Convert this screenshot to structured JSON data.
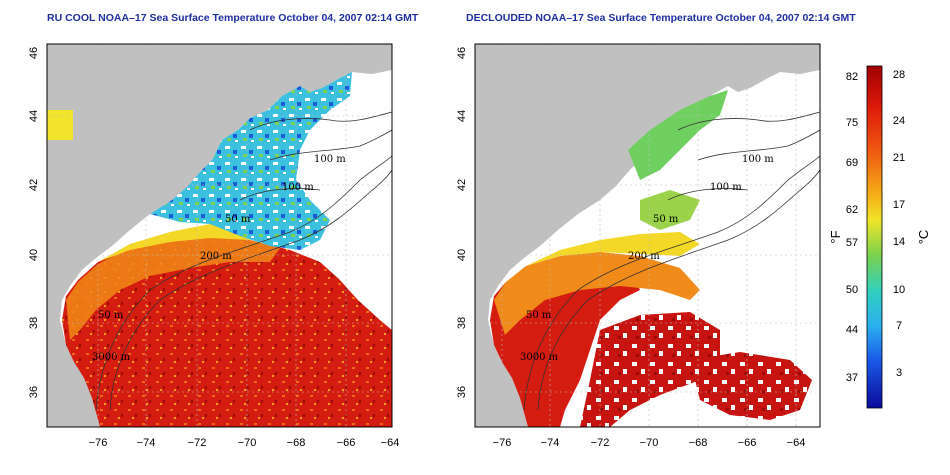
{
  "panels": [
    {
      "title": "RU COOL NOAA–17 Sea Surface Temperature October 04, 2007 02:14 GMT",
      "x_ticks": [
        "−76",
        "−74",
        "−72",
        "−70",
        "−68",
        "−66",
        "−64"
      ],
      "y_ticks": [
        "46",
        "44",
        "42",
        "40",
        "38",
        "36"
      ],
      "contour_labels": [
        "100 m",
        "100 m",
        "50 m",
        "200 m",
        "50 m",
        "3000 m"
      ]
    },
    {
      "title": "DECLOUDED NOAA–17 Sea Surface Temperature October 04, 2007 02:14 GMT",
      "x_ticks": [
        "−76",
        "−74",
        "−72",
        "−70",
        "−68",
        "−66",
        "−64"
      ],
      "y_ticks": [
        "46",
        "44",
        "42",
        "40",
        "38",
        "36"
      ],
      "contour_labels": [
        "100 m",
        "100 m",
        "50 m",
        "200 m",
        "50 m",
        "3000 m"
      ]
    }
  ],
  "colorbar": {
    "fahrenheit_ticks": [
      "82",
      "75",
      "69",
      "62",
      "57",
      "50",
      "44",
      "37"
    ],
    "celsius_ticks": [
      "28",
      "24",
      "21",
      "17",
      "14",
      "10",
      "7",
      "3"
    ],
    "unit_f": "°F",
    "unit_c": "°C"
  },
  "colors": {
    "land": "#c0c0c0",
    "cloud": "#ffffff",
    "title": "#1f2f9f",
    "warm": "#c81010",
    "hot": "#e83a10",
    "orange": "#f08a18",
    "yellow": "#f3e030",
    "green": "#58c870",
    "cyan": "#30c8e8",
    "blue": "#1050d8"
  }
}
